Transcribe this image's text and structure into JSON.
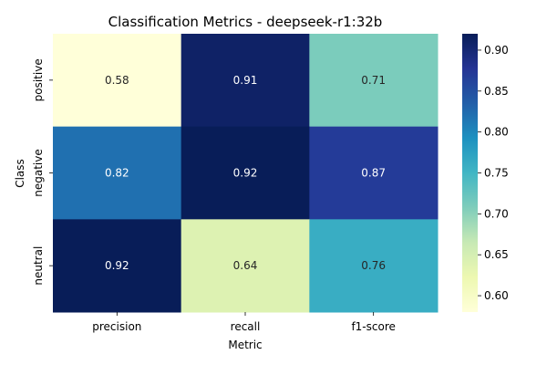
{
  "chart_data": {
    "type": "heatmap",
    "title": "Classification Metrics - deepseek-r1:32b",
    "xlabel": "Metric",
    "ylabel": "Class",
    "x_categories": [
      "precision",
      "recall",
      "f1-score"
    ],
    "y_categories": [
      "positive",
      "negative",
      "neutral"
    ],
    "values": [
      [
        0.58,
        0.91,
        0.71
      ],
      [
        0.82,
        0.92,
        0.87
      ],
      [
        0.92,
        0.64,
        0.76
      ]
    ],
    "cell_labels": [
      [
        "0.58",
        "0.91",
        "0.71"
      ],
      [
        "0.82",
        "0.92",
        "0.87"
      ],
      [
        "0.92",
        "0.64",
        "0.76"
      ]
    ],
    "colormap": "YlGnBu",
    "vmin": 0.58,
    "vmax": 0.92,
    "colorbar_ticks": [
      0.6,
      0.65,
      0.7,
      0.75,
      0.8,
      0.85,
      0.9
    ],
    "colorbar_tick_labels": [
      "0.60",
      "0.65",
      "0.70",
      "0.75",
      "0.80",
      "0.85",
      "0.90"
    ],
    "colormap_stops": [
      "#ffffd9",
      "#edf8b1",
      "#c7e9b4",
      "#7fcdbb",
      "#41b6c4",
      "#1d91c0",
      "#225ea8",
      "#253494",
      "#081d58"
    ],
    "legend": "colorbar-right",
    "grid": false
  }
}
